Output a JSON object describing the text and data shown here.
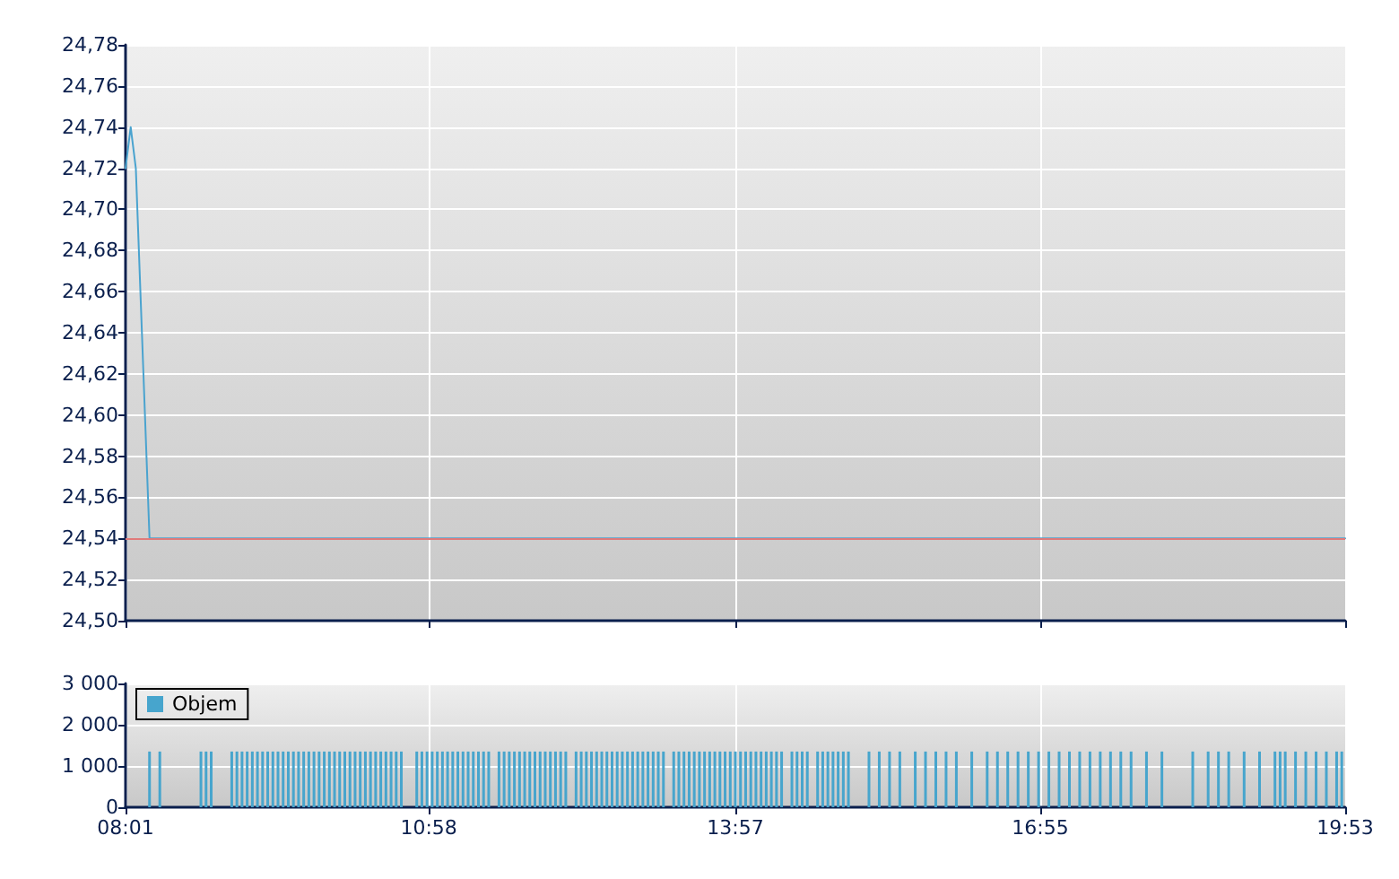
{
  "chart_data": [
    {
      "type": "line",
      "x": [
        8.0167,
        8.0667,
        8.1167,
        8.25,
        19.8833
      ],
      "series": [
        {
          "color": "#4aa3cf",
          "values": [
            24.72,
            24.74,
            24.72,
            24.54,
            24.54
          ]
        }
      ],
      "xlim": [
        8.0167,
        19.8833
      ],
      "xticks": [
        {
          "value": 8.0167,
          "label": null
        },
        {
          "value": 10.9667,
          "label": null
        },
        {
          "value": 13.95,
          "label": null
        },
        {
          "value": 16.9167,
          "label": null
        },
        {
          "value": 19.8833,
          "label": null
        }
      ],
      "ylim": [
        24.5,
        24.78
      ],
      "yticks": [
        {
          "value": 24.5,
          "label": "24,50"
        },
        {
          "value": 24.52,
          "label": "24,52"
        },
        {
          "value": 24.54,
          "label": "24,54"
        },
        {
          "value": 24.56,
          "label": "24,56"
        },
        {
          "value": 24.58,
          "label": "24,58"
        },
        {
          "value": 24.6,
          "label": "24,60"
        },
        {
          "value": 24.62,
          "label": "24,62"
        },
        {
          "value": 24.64,
          "label": "24,64"
        },
        {
          "value": 24.66,
          "label": "24,66"
        },
        {
          "value": 24.68,
          "label": "24,68"
        },
        {
          "value": 24.7,
          "label": "24,70"
        },
        {
          "value": 24.72,
          "label": "24,72"
        },
        {
          "value": 24.74,
          "label": "24,74"
        },
        {
          "value": 24.76,
          "label": "24,76"
        },
        {
          "value": 24.78,
          "label": "24,78"
        }
      ],
      "ref_lines": [
        {
          "axis": "y",
          "value": 24.54,
          "color": "#e07a7a"
        }
      ],
      "grid": true,
      "marker": "none",
      "line_style": "solid",
      "tick_labels": "y"
    },
    {
      "type": "bar",
      "x": [
        8.25,
        8.35,
        8.75,
        8.8,
        8.85,
        9.05,
        9.1,
        9.15,
        9.2,
        9.25,
        9.3,
        9.35,
        9.4,
        9.45,
        9.5,
        9.55,
        9.6,
        9.65,
        9.7,
        9.75,
        9.8,
        9.85,
        9.9,
        9.95,
        10,
        10.05,
        10.1,
        10.15,
        10.2,
        10.25,
        10.3,
        10.35,
        10.4,
        10.45,
        10.5,
        10.55,
        10.6,
        10.65,
        10.7,
        10.85,
        10.9,
        10.95,
        11,
        11.05,
        11.1,
        11.15,
        11.2,
        11.25,
        11.3,
        11.35,
        11.4,
        11.45,
        11.5,
        11.55,
        11.65,
        11.7,
        11.75,
        11.8,
        11.85,
        11.9,
        11.95,
        12,
        12.05,
        12.1,
        12.15,
        12.2,
        12.25,
        12.3,
        12.4,
        12.45,
        12.5,
        12.55,
        12.6,
        12.65,
        12.7,
        12.75,
        12.8,
        12.85,
        12.9,
        12.95,
        13,
        13.05,
        13.1,
        13.15,
        13.2,
        13.25,
        13.35,
        13.4,
        13.45,
        13.5,
        13.55,
        13.6,
        13.65,
        13.7,
        13.75,
        13.8,
        13.85,
        13.9,
        13.95,
        14,
        14.05,
        14.1,
        14.15,
        14.2,
        14.25,
        14.3,
        14.35,
        14.4,
        14.5,
        14.55,
        14.6,
        14.65,
        14.75,
        14.8,
        14.85,
        14.9,
        14.95,
        15,
        15.05,
        15.25,
        15.35,
        15.45,
        15.55,
        15.7,
        15.8,
        15.9,
        16,
        16.1,
        16.25,
        16.4,
        16.5,
        16.6,
        16.7,
        16.8,
        16.9,
        17,
        17.1,
        17.2,
        17.3,
        17.4,
        17.5,
        17.6,
        17.7,
        17.8,
        17.95,
        18.1,
        18.4,
        18.55,
        18.65,
        18.75,
        18.9,
        19.05,
        19.2,
        19.25,
        19.3,
        19.4,
        19.5,
        19.6,
        19.7,
        19.8,
        19.85
      ],
      "series": [
        {
          "name": "Objem",
          "color": "#47a5cd",
          "values": [
            1350,
            1350,
            1350,
            1350,
            1350,
            1350,
            1350,
            1350,
            1350,
            1350,
            1350,
            1350,
            1350,
            1350,
            1350,
            1350,
            1350,
            1350,
            1350,
            1350,
            1350,
            1350,
            1350,
            1350,
            1350,
            1350,
            1350,
            1350,
            1350,
            1350,
            1350,
            1350,
            1350,
            1350,
            1350,
            1350,
            1350,
            1350,
            1350,
            1350,
            1350,
            1350,
            1350,
            1350,
            1350,
            1350,
            1350,
            1350,
            1350,
            1350,
            1350,
            1350,
            1350,
            1350,
            1350,
            1350,
            1350,
            1350,
            1350,
            1350,
            1350,
            1350,
            1350,
            1350,
            1350,
            1350,
            1350,
            1350,
            1350,
            1350,
            1350,
            1350,
            1350,
            1350,
            1350,
            1350,
            1350,
            1350,
            1350,
            1350,
            1350,
            1350,
            1350,
            1350,
            1350,
            1350,
            1350,
            1350,
            1350,
            1350,
            1350,
            1350,
            1350,
            1350,
            1350,
            1350,
            1350,
            1350,
            1350,
            1350,
            1350,
            1350,
            1350,
            1350,
            1350,
            1350,
            1350,
            1350,
            1350,
            1350,
            1350,
            1350,
            1350,
            1350,
            1350,
            1350,
            1350,
            1350,
            1350,
            1350,
            1350,
            1350,
            1350,
            1350,
            1350,
            1350,
            1350,
            1350,
            1350,
            1350,
            1350,
            1350,
            1350,
            1350,
            1350,
            1350,
            1350,
            1350,
            1350,
            1350,
            1350,
            1350,
            1350,
            1350,
            1350,
            1350,
            1350,
            1350,
            1350,
            1350,
            1350,
            1350,
            1350,
            1350,
            1350,
            1350,
            1350,
            1350,
            1350,
            1350,
            1350
          ]
        }
      ],
      "xlim": [
        8.0167,
        19.8833
      ],
      "xticks": [
        {
          "value": 8.0167,
          "label": "08:01"
        },
        {
          "value": 10.9667,
          "label": "10:58"
        },
        {
          "value": 13.95,
          "label": "13:57"
        },
        {
          "value": 16.9167,
          "label": "16:55"
        },
        {
          "value": 19.8833,
          "label": "19:53"
        }
      ],
      "ylim": [
        0,
        3000
      ],
      "yticks": [
        0,
        {
          "value": 1000,
          "label": "1 000"
        },
        {
          "value": 2000,
          "label": "2 000"
        },
        {
          "value": 3000,
          "label": "3 000"
        }
      ],
      "grid": true,
      "legend": "top left"
    }
  ]
}
